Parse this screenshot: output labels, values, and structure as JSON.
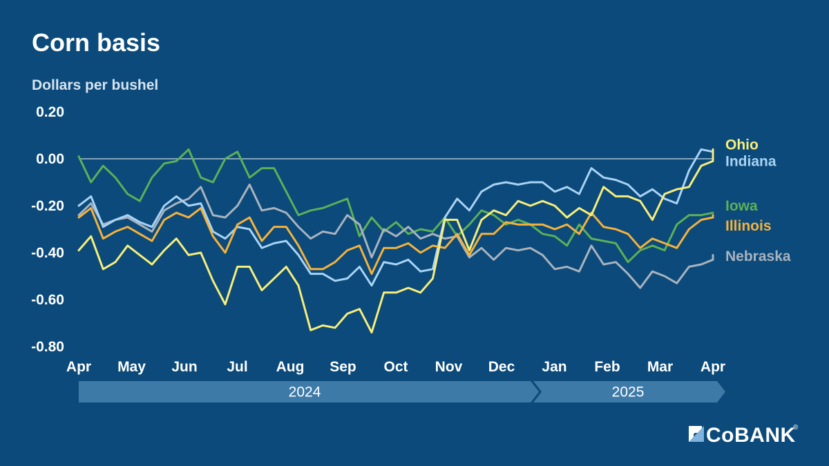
{
  "header": {
    "title": "Corn basis",
    "subtitle": "Dollars per bushel"
  },
  "logo": {
    "text": "CoBANK",
    "registered": "®"
  },
  "chart_data": {
    "type": "line",
    "title": "Corn basis",
    "ylabel": "Dollars per bushel",
    "ylim": [
      -0.8,
      0.2
    ],
    "yticks": [
      0.2,
      0.0,
      -0.2,
      -0.4,
      -0.6,
      -0.8
    ],
    "ytick_labels": [
      "0.20",
      "0.00",
      "-0.20",
      "-0.40",
      "-0.60",
      "-0.80"
    ],
    "zero_line": true,
    "xticks": [
      "Apr",
      "May",
      "Jun",
      "Jul",
      "Aug",
      "Sep",
      "Oct",
      "Nov",
      "Dec",
      "Jan",
      "Feb",
      "Mar",
      "Apr"
    ],
    "years": [
      {
        "label": "2024",
        "start": 0,
        "end": 8.55
      },
      {
        "label": "2025",
        "start": 8.55,
        "end": 12.4
      }
    ],
    "x_weeks_per_month": 4.33,
    "series": [
      {
        "name": "Iowa",
        "color": "#5db058",
        "values": [
          0.01,
          -0.1,
          -0.03,
          -0.08,
          -0.15,
          -0.18,
          -0.08,
          -0.02,
          -0.01,
          0.04,
          -0.08,
          -0.1,
          0,
          0.03,
          -0.08,
          -0.04,
          -0.04,
          -0.14,
          -0.24,
          -0.22,
          -0.21,
          -0.19,
          -0.17,
          -0.33,
          -0.25,
          -0.31,
          -0.27,
          -0.32,
          -0.3,
          -0.31,
          -0.25,
          -0.33,
          -0.28,
          -0.22,
          -0.24,
          -0.28,
          -0.26,
          -0.28,
          -0.32,
          -0.33,
          -0.37,
          -0.28,
          -0.34,
          -0.35,
          -0.36,
          -0.44,
          -0.39,
          -0.37,
          -0.39,
          -0.28,
          -0.24,
          -0.24,
          -0.23
        ]
      },
      {
        "name": "Nebraska",
        "color": "#a9b3be",
        "values": [
          -0.24,
          -0.19,
          -0.28,
          -0.26,
          -0.25,
          -0.28,
          -0.31,
          -0.22,
          -0.19,
          -0.17,
          -0.12,
          -0.24,
          -0.25,
          -0.2,
          -0.11,
          -0.22,
          -0.21,
          -0.23,
          -0.29,
          -0.34,
          -0.31,
          -0.32,
          -0.24,
          -0.28,
          -0.42,
          -0.3,
          -0.33,
          -0.29,
          -0.34,
          -0.32,
          -0.34,
          -0.33,
          -0.42,
          -0.38,
          -0.43,
          -0.38,
          -0.39,
          -0.38,
          -0.41,
          -0.47,
          -0.46,
          -0.48,
          -0.37,
          -0.45,
          -0.44,
          -0.49,
          -0.55,
          -0.48,
          -0.5,
          -0.53,
          -0.46,
          -0.45,
          -0.43,
          -0.41
        ]
      },
      {
        "name": "Indiana",
        "color": "#a9d3f5",
        "values": [
          -0.2,
          -0.16,
          -0.29,
          -0.26,
          -0.24,
          -0.27,
          -0.29,
          -0.2,
          -0.16,
          -0.2,
          -0.19,
          -0.31,
          -0.34,
          -0.29,
          -0.3,
          -0.38,
          -0.36,
          -0.35,
          -0.41,
          -0.49,
          -0.49,
          -0.52,
          -0.51,
          -0.46,
          -0.54,
          -0.44,
          -0.45,
          -0.43,
          -0.48,
          -0.47,
          -0.25,
          -0.17,
          -0.22,
          -0.14,
          -0.11,
          -0.1,
          -0.11,
          -0.1,
          -0.1,
          -0.14,
          -0.12,
          -0.15,
          -0.04,
          -0.08,
          -0.09,
          -0.11,
          -0.16,
          -0.13,
          -0.17,
          -0.19,
          -0.05,
          0.04,
          0.03,
          0.02
        ]
      },
      {
        "name": "Illinois",
        "color": "#f5b23d",
        "values": [
          -0.25,
          -0.21,
          -0.34,
          -0.31,
          -0.29,
          -0.32,
          -0.35,
          -0.26,
          -0.23,
          -0.25,
          -0.21,
          -0.33,
          -0.4,
          -0.28,
          -0.25,
          -0.35,
          -0.29,
          -0.29,
          -0.37,
          -0.47,
          -0.47,
          -0.44,
          -0.39,
          -0.37,
          -0.49,
          -0.38,
          -0.38,
          -0.36,
          -0.4,
          -0.37,
          -0.38,
          -0.32,
          -0.41,
          -0.32,
          -0.32,
          -0.27,
          -0.28,
          -0.28,
          -0.28,
          -0.3,
          -0.28,
          -0.32,
          -0.23,
          -0.29,
          -0.3,
          -0.32,
          -0.38,
          -0.34,
          -0.36,
          -0.38,
          -0.3,
          -0.26,
          -0.25,
          -0.24
        ]
      },
      {
        "name": "Ohio",
        "color": "#f8ee7a",
        "values": [
          -0.39,
          -0.33,
          -0.47,
          -0.44,
          -0.37,
          -0.41,
          -0.45,
          -0.39,
          -0.34,
          -0.41,
          -0.4,
          -0.52,
          -0.62,
          -0.46,
          -0.46,
          -0.56,
          -0.51,
          -0.46,
          -0.54,
          -0.73,
          -0.71,
          -0.72,
          -0.66,
          -0.64,
          -0.74,
          -0.57,
          -0.57,
          -0.55,
          -0.57,
          -0.51,
          -0.26,
          -0.26,
          -0.39,
          -0.26,
          -0.22,
          -0.24,
          -0.18,
          -0.2,
          -0.18,
          -0.2,
          -0.25,
          -0.21,
          -0.24,
          -0.12,
          -0.16,
          -0.16,
          -0.18,
          -0.26,
          -0.15,
          -0.13,
          -0.12,
          -0.03,
          -0.01,
          0.04,
          0.04
        ]
      }
    ],
    "legend": [
      {
        "name": "Ohio",
        "color": "#f8ee7a",
        "y": 0.06
      },
      {
        "name": "Indiana",
        "color": "#a9d3f5",
        "y": -0.01
      },
      {
        "name": "Iowa",
        "color": "#5db058",
        "y": -0.2
      },
      {
        "name": "Illinois",
        "color": "#f5b23d",
        "y": -0.285
      },
      {
        "name": "Nebraska",
        "color": "#a9b3be",
        "y": -0.415
      }
    ]
  }
}
